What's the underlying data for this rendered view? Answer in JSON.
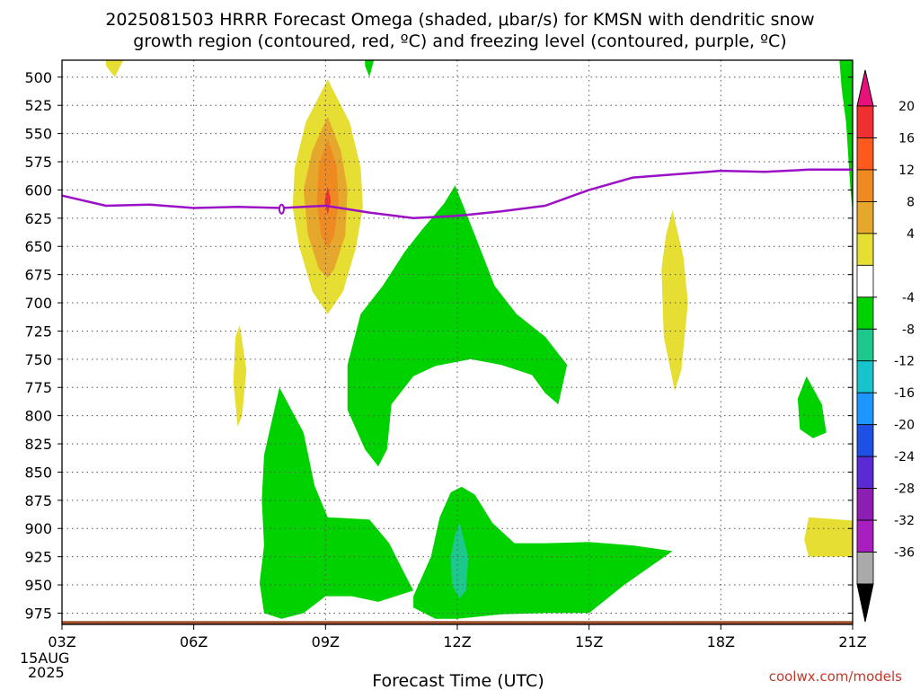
{
  "chart_data": {
    "type": "heatmap",
    "title_line1": "2025081503 HRRR Forecast Omega (shaded, μbar/s) for KMSN with dendritic snow",
    "title_line2": "growth region (contoured, red, ºC) and freezing level (contoured, purple, ºC)",
    "xlabel": "Forecast Time (UTC)",
    "credit": "coolwx.com/models",
    "date_line1": "15AUG",
    "date_line2": "2025",
    "x_ticks": [
      {
        "hour": 3,
        "label": "03Z"
      },
      {
        "hour": 6,
        "label": "06Z"
      },
      {
        "hour": 9,
        "label": "09Z"
      },
      {
        "hour": 12,
        "label": "12Z"
      },
      {
        "hour": 15,
        "label": "15Z"
      },
      {
        "hour": 18,
        "label": "18Z"
      },
      {
        "hour": 21,
        "label": "21Z"
      }
    ],
    "xlim": [
      3,
      21
    ],
    "ylim": [
      985,
      485
    ],
    "y_ticks": [
      500,
      525,
      550,
      575,
      600,
      625,
      650,
      675,
      700,
      725,
      750,
      775,
      800,
      825,
      850,
      875,
      900,
      925,
      950,
      975
    ],
    "grid": true,
    "colorbar": {
      "labels": [
        "20",
        "16",
        "12",
        "8",
        "4",
        "-4",
        "-8",
        "-12",
        "-16",
        "-20",
        "-24",
        "-28",
        "-32",
        "-36"
      ],
      "colors": [
        "#e8107a",
        "#f03030",
        "#ff5a1e",
        "#ef8a22",
        "#e6a82c",
        "#e6de32",
        "#ffffff",
        "#00d200",
        "#1dc88c",
        "#18c4cc",
        "#1e96ff",
        "#1e50e6",
        "#5a2ad2",
        "#8c1eb4",
        "#a91ebf",
        "#aaaaaa",
        "#000000"
      ]
    },
    "shaded_regions": [
      {
        "name": "yellow",
        "color": "#e6de32",
        "points": [
          [
            4,
            485
          ],
          [
            4.4,
            485
          ],
          [
            4.2,
            500
          ],
          [
            4,
            490
          ]
        ]
      },
      {
        "name": "green",
        "color": "#00d200",
        "points": [
          [
            9.9,
            485
          ],
          [
            10.1,
            485
          ],
          [
            10,
            500
          ],
          [
            9.9,
            490
          ]
        ]
      },
      {
        "name": "yellow",
        "color": "#e6de32",
        "points": [
          [
            9.05,
            502
          ],
          [
            9.55,
            540
          ],
          [
            9.8,
            580
          ],
          [
            9.85,
            615
          ],
          [
            9.7,
            650
          ],
          [
            9.4,
            690
          ],
          [
            9.05,
            710
          ],
          [
            8.7,
            690
          ],
          [
            8.4,
            650
          ],
          [
            8.25,
            615
          ],
          [
            8.3,
            580
          ],
          [
            8.55,
            540
          ]
        ]
      },
      {
        "name": "orange",
        "color": "#e6a82c",
        "points": [
          [
            9.05,
            535
          ],
          [
            9.35,
            565
          ],
          [
            9.5,
            600
          ],
          [
            9.45,
            640
          ],
          [
            9.2,
            670
          ],
          [
            9.05,
            678
          ],
          [
            8.85,
            670
          ],
          [
            8.6,
            640
          ],
          [
            8.5,
            600
          ],
          [
            8.7,
            565
          ]
        ]
      },
      {
        "name": "orange",
        "color": "#ef8a22",
        "points": [
          [
            9.05,
            555
          ],
          [
            9.25,
            578
          ],
          [
            9.3,
            610
          ],
          [
            9.2,
            640
          ],
          [
            9.05,
            652
          ],
          [
            8.9,
            640
          ],
          [
            8.8,
            610
          ],
          [
            8.85,
            578
          ]
        ]
      },
      {
        "name": "red",
        "color": "#f03030",
        "points": [
          [
            9.05,
            597
          ],
          [
            9.12,
            610
          ],
          [
            9.05,
            622
          ],
          [
            8.98,
            610
          ]
        ]
      },
      {
        "name": "yellow",
        "color": "#e6de32",
        "points": [
          [
            7.05,
            720
          ],
          [
            7.2,
            760
          ],
          [
            7.1,
            800
          ],
          [
            7.0,
            810
          ],
          [
            6.9,
            770
          ],
          [
            6.95,
            730
          ]
        ]
      },
      {
        "name": "yellow",
        "color": "#e6de32",
        "points": [
          [
            16.9,
            618
          ],
          [
            17.15,
            660
          ],
          [
            17.25,
            700
          ],
          [
            17.1,
            760
          ],
          [
            16.95,
            778
          ],
          [
            16.7,
            730
          ],
          [
            16.65,
            670
          ],
          [
            16.75,
            640
          ]
        ]
      },
      {
        "name": "green",
        "color": "#00d200",
        "points": [
          [
            11.95,
            596
          ],
          [
            12.4,
            640
          ],
          [
            12.85,
            685
          ],
          [
            13.35,
            710
          ],
          [
            14.0,
            730
          ],
          [
            14.5,
            755
          ],
          [
            14.3,
            790
          ],
          [
            14.0,
            780
          ],
          [
            13.7,
            764
          ],
          [
            13.0,
            755
          ],
          [
            12.3,
            750
          ],
          [
            11.5,
            756
          ],
          [
            11.0,
            765
          ],
          [
            10.5,
            790
          ],
          [
            10.4,
            830
          ],
          [
            10.2,
            845
          ],
          [
            9.9,
            830
          ],
          [
            9.5,
            795
          ],
          [
            9.5,
            755
          ],
          [
            9.8,
            710
          ],
          [
            10.3,
            685
          ],
          [
            10.8,
            655
          ],
          [
            11.2,
            635
          ],
          [
            11.7,
            612
          ]
        ]
      },
      {
        "name": "green",
        "color": "#00d200",
        "points": [
          [
            7.95,
            775
          ],
          [
            8.5,
            815
          ],
          [
            8.75,
            862
          ],
          [
            9.05,
            890
          ],
          [
            10.0,
            892
          ],
          [
            10.45,
            913
          ],
          [
            10.8,
            940
          ],
          [
            11.0,
            955
          ],
          [
            10.2,
            965
          ],
          [
            9.6,
            960
          ],
          [
            9.0,
            960
          ],
          [
            8.5,
            975
          ],
          [
            8.0,
            980
          ],
          [
            7.6,
            975
          ],
          [
            7.5,
            948
          ],
          [
            7.6,
            915
          ],
          [
            7.55,
            875
          ],
          [
            7.6,
            835
          ]
        ]
      },
      {
        "name": "green",
        "color": "#00d200",
        "points": [
          [
            12.1,
            863
          ],
          [
            12.4,
            870
          ],
          [
            12.8,
            895
          ],
          [
            13.3,
            913
          ],
          [
            14.0,
            913
          ],
          [
            15.0,
            912
          ],
          [
            16.0,
            915
          ],
          [
            16.9,
            920
          ],
          [
            15.8,
            950
          ],
          [
            15.0,
            975
          ],
          [
            14.0,
            975
          ],
          [
            13.0,
            976
          ],
          [
            12.0,
            980
          ],
          [
            11.5,
            980
          ],
          [
            11.0,
            970
          ],
          [
            11.0,
            960
          ],
          [
            11.4,
            925
          ],
          [
            11.6,
            890
          ],
          [
            11.85,
            868
          ]
        ]
      },
      {
        "name": "teal",
        "color": "#1dc88c",
        "points": [
          [
            12.05,
            895
          ],
          [
            12.25,
            925
          ],
          [
            12.2,
            955
          ],
          [
            12.05,
            962
          ],
          [
            11.88,
            950
          ],
          [
            11.85,
            925
          ],
          [
            11.95,
            905
          ]
        ]
      },
      {
        "name": "green",
        "color": "#00d200",
        "points": [
          [
            19.95,
            765
          ],
          [
            20.3,
            790
          ],
          [
            20.4,
            815
          ],
          [
            20.1,
            820
          ],
          [
            19.8,
            812
          ],
          [
            19.75,
            785
          ]
        ]
      },
      {
        "name": "yellow",
        "color": "#e6de32",
        "points": [
          [
            20.0,
            890
          ],
          [
            21.0,
            893
          ],
          [
            21.0,
            925
          ],
          [
            20.0,
            925
          ],
          [
            19.9,
            910
          ]
        ]
      },
      {
        "name": "green",
        "color": "#00d200",
        "points": [
          [
            20.7,
            485
          ],
          [
            21.0,
            485
          ],
          [
            21.0,
            620
          ],
          [
            20.95,
            600
          ],
          [
            20.85,
            540
          ],
          [
            20.75,
            510
          ]
        ]
      }
    ],
    "freezing_level": {
      "color": "#9b10c4",
      "x": [
        3,
        4,
        5,
        6,
        7,
        8,
        9,
        10,
        11,
        12,
        13,
        14,
        15,
        16,
        17,
        18,
        19,
        20,
        21
      ],
      "y": [
        605,
        614,
        613,
        616,
        615,
        616,
        614,
        620,
        625,
        623,
        619,
        614,
        600,
        589,
        586,
        583,
        584,
        582,
        582
      ]
    },
    "dgz_marks": [
      [
        8.0,
        617
      ]
    ],
    "ground": {
      "color": "#a0522d",
      "pressure_top": 982
    }
  }
}
